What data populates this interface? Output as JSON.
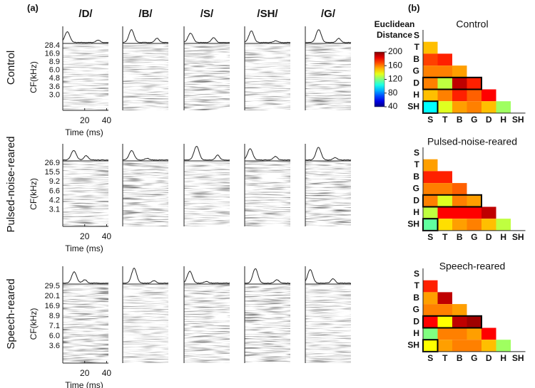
{
  "panel_a": {
    "label": "(a)",
    "phonemes": [
      "/D/",
      "/B/",
      "/S/",
      "/SH/",
      "/G/"
    ],
    "y_axis_label": "CF(kHz)",
    "x_axis_label": "Time (ms)",
    "x_ticks": [
      "20",
      "40"
    ],
    "groups": [
      {
        "name": "Control",
        "cf_ticks": [
          "28.4",
          "16.9",
          "8.9",
          "6.0",
          "4.8",
          "3.6",
          "3.0"
        ]
      },
      {
        "name": "Pulsed-noise-reared",
        "cf_ticks": [
          "26.9",
          "15.5",
          "9.2",
          "6.6",
          "4.2",
          "3.1"
        ]
      },
      {
        "name": "Speech-reared",
        "cf_ticks": [
          "29.5",
          "20.1",
          "16.9",
          "8.9",
          "7.1",
          "6.0",
          "3.6"
        ]
      }
    ]
  },
  "panel_b": {
    "label": "(b)",
    "colorbar_title": [
      "Euclidean",
      "Distance"
    ],
    "zlim": [
      40,
      200
    ],
    "zticks": [
      40,
      80,
      120,
      160,
      200
    ]
  },
  "chart_data": [
    {
      "type": "heatmap",
      "title": "Control",
      "rows": [
        "S",
        "T",
        "B",
        "G",
        "D",
        "H",
        "SH"
      ],
      "columns": [
        "S",
        "T",
        "B",
        "G",
        "D",
        "H",
        "SH"
      ],
      "values": [
        [],
        [
          150
        ],
        [
          170,
          175
        ],
        [
          160,
          160,
          155
        ],
        [
          160,
          130,
          190,
          175
        ],
        [
          150,
          160,
          175,
          165,
          180
        ],
        [
          100,
          135,
          155,
          160,
          150,
          125
        ]
      ]
    },
    {
      "type": "heatmap",
      "title": "Pulsed-noise-reared",
      "rows": [
        "S",
        "T",
        "B",
        "G",
        "D",
        "H",
        "SH"
      ],
      "columns": [
        "S",
        "T",
        "B",
        "G",
        "D",
        "H",
        "SH"
      ],
      "values": [
        [],
        [
          155
        ],
        [
          175,
          175
        ],
        [
          160,
          160,
          165
        ],
        [
          160,
          135,
          160,
          155
        ],
        [
          130,
          180,
          180,
          180,
          190
        ],
        [
          115,
          145,
          155,
          160,
          150,
          130
        ]
      ]
    },
    {
      "type": "heatmap",
      "title": "Speech-reared",
      "rows": [
        "S",
        "T",
        "B",
        "G",
        "D",
        "H",
        "SH"
      ],
      "columns": [
        "S",
        "T",
        "B",
        "G",
        "D",
        "H",
        "SH"
      ],
      "values": [
        [],
        [
          175
        ],
        [
          155,
          190
        ],
        [
          160,
          160,
          155
        ],
        [
          180,
          140,
          190,
          195
        ],
        [
          120,
          160,
          160,
          155,
          180
        ],
        [
          140,
          155,
          160,
          160,
          150,
          125
        ]
      ]
    }
  ]
}
